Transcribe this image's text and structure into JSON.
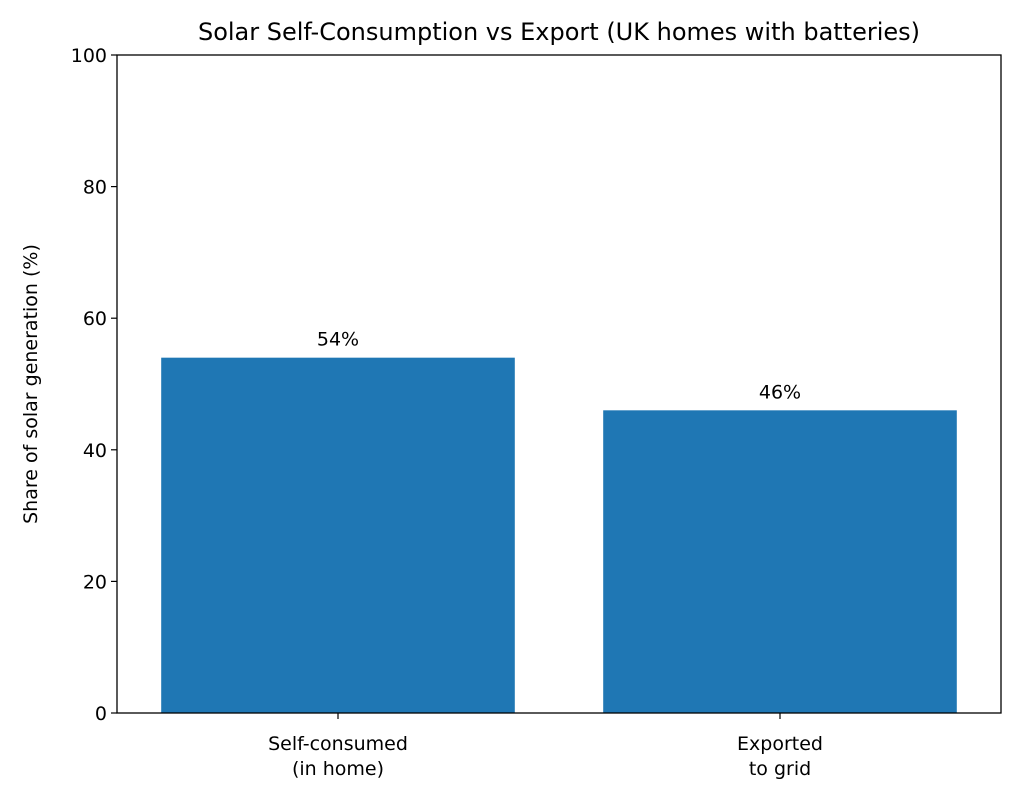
{
  "chart_data": {
    "type": "bar",
    "title": "Solar Self-Consumption vs Export (UK homes with batteries)",
    "xlabel": "",
    "ylabel": "Share of solar generation (%)",
    "categories": [
      [
        "Self-consumed",
        "(in home)"
      ],
      [
        "Exported",
        "to grid"
      ]
    ],
    "values": [
      54,
      46
    ],
    "data_labels": [
      "54%",
      "46%"
    ],
    "ylim": [
      0,
      100
    ],
    "yticks": [
      0,
      20,
      40,
      60,
      80,
      100
    ],
    "grid": false,
    "bar_color": "#1f77b4"
  }
}
